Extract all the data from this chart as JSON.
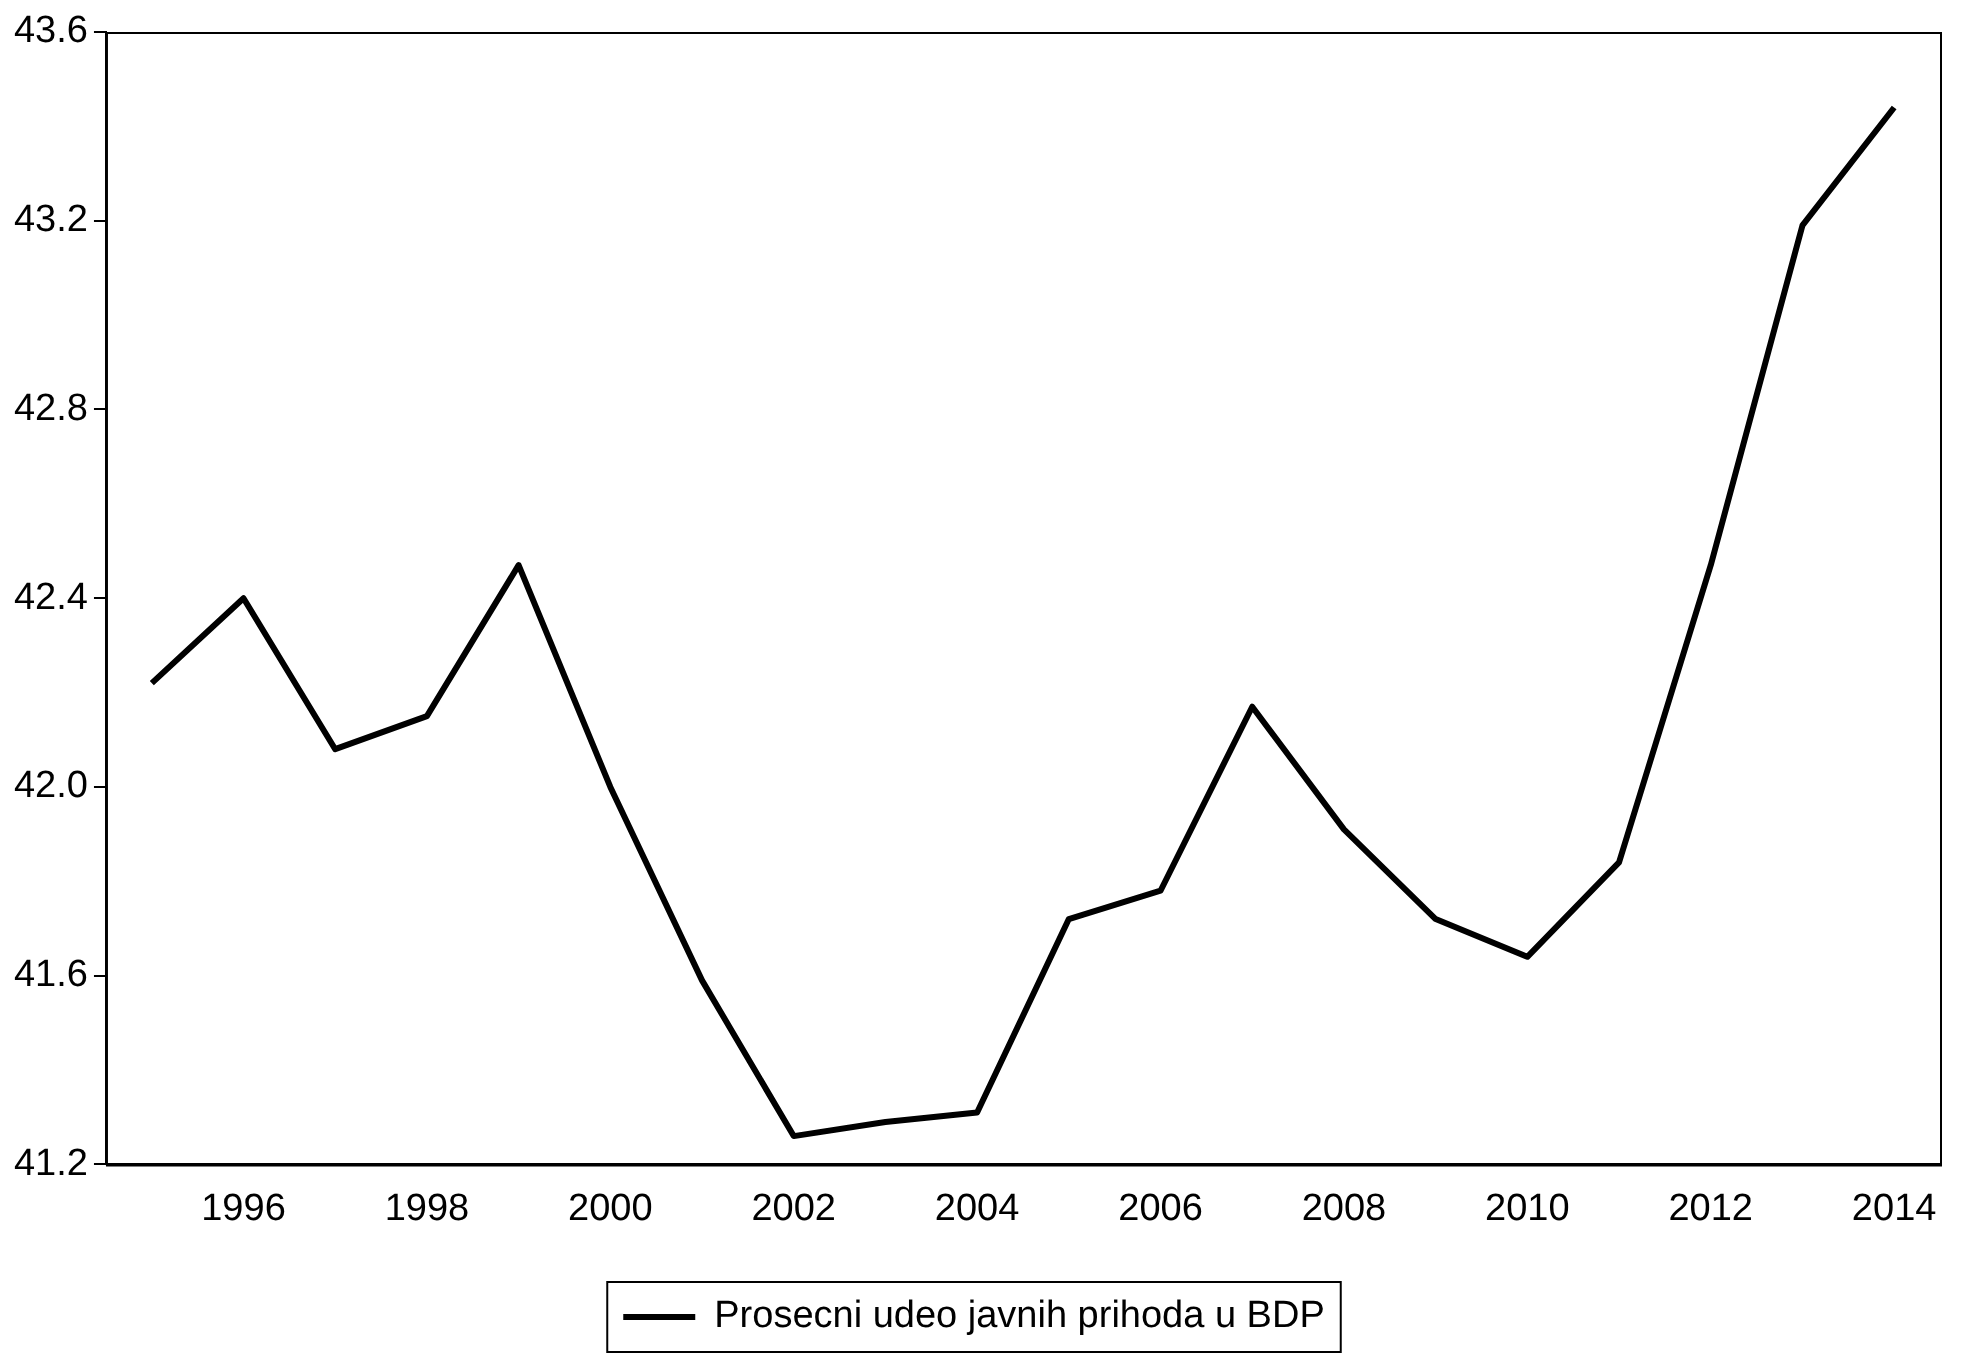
{
  "chart_data": {
    "type": "line",
    "categories": [
      null,
      "1996",
      null,
      "1998",
      null,
      "2000",
      null,
      "2002",
      null,
      "2004",
      null,
      "2006",
      null,
      "2008",
      null,
      "2010",
      null,
      "2012",
      null,
      "2014"
    ],
    "series": [
      {
        "name": "Prosecni udeo javnih prihoda u BDP",
        "color": "#000000",
        "values": [
          42.22,
          42.4,
          42.08,
          42.15,
          42.47,
          42.0,
          41.59,
          41.26,
          41.29,
          41.31,
          41.72,
          41.78,
          42.17,
          41.91,
          41.72,
          41.64,
          41.84,
          42.47,
          43.19,
          43.44
        ]
      }
    ],
    "ylim": [
      41.2,
      43.6
    ],
    "yticks": [
      41.2,
      41.6,
      {
        "value": 42,
        "label": "42.0"
      },
      42.4,
      42.8,
      43.2,
      43.6
    ],
    "grid": false,
    "legend": "bottom",
    "marker": "none",
    "line_style": "solid"
  }
}
